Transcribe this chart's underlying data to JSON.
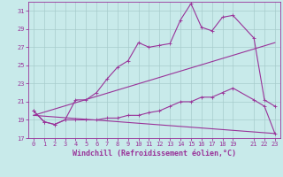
{
  "bg_color": "#c8eaea",
  "grid_color": "#a8cccc",
  "line_color": "#993399",
  "xlabel": "Windchill (Refroidissement éolien,°C)",
  "xlim": [
    -0.5,
    23.5
  ],
  "ylim": [
    17,
    32
  ],
  "yticks": [
    17,
    19,
    21,
    23,
    25,
    27,
    29,
    31
  ],
  "xticks": [
    0,
    1,
    2,
    3,
    4,
    5,
    6,
    7,
    8,
    9,
    10,
    11,
    12,
    13,
    14,
    15,
    16,
    17,
    18,
    19,
    21,
    22,
    23
  ],
  "line1_x": [
    0,
    1,
    2,
    3,
    4,
    5,
    6,
    7,
    8,
    9,
    10,
    11,
    12,
    13,
    14,
    15,
    16,
    17,
    18,
    19,
    21,
    22,
    23
  ],
  "line1_y": [
    20.0,
    18.8,
    18.5,
    19.0,
    21.2,
    21.2,
    22.0,
    23.5,
    24.8,
    25.5,
    27.5,
    27.0,
    27.2,
    27.4,
    30.0,
    31.8,
    29.2,
    28.8,
    30.3,
    30.5,
    28.0,
    21.2,
    20.5
  ],
  "line2_x": [
    0,
    1,
    2,
    3,
    4,
    5,
    6,
    7,
    8,
    9,
    10,
    11,
    12,
    13,
    14,
    15,
    16,
    17,
    18,
    19,
    21,
    22,
    23
  ],
  "line2_y": [
    20.0,
    18.8,
    18.5,
    19.0,
    19.0,
    19.0,
    19.0,
    19.2,
    19.2,
    19.5,
    19.5,
    19.8,
    20.0,
    20.5,
    21.0,
    21.0,
    21.5,
    21.5,
    22.0,
    22.5,
    21.2,
    20.5,
    17.5
  ],
  "line3_x": [
    0,
    23
  ],
  "line3_y": [
    19.5,
    27.5
  ],
  "line4_x": [
    0,
    23
  ],
  "line4_y": [
    19.5,
    17.5
  ],
  "marker": "+",
  "markersize": 3,
  "linewidth": 0.8,
  "xlabel_fontsize": 6,
  "tick_fontsize": 5
}
